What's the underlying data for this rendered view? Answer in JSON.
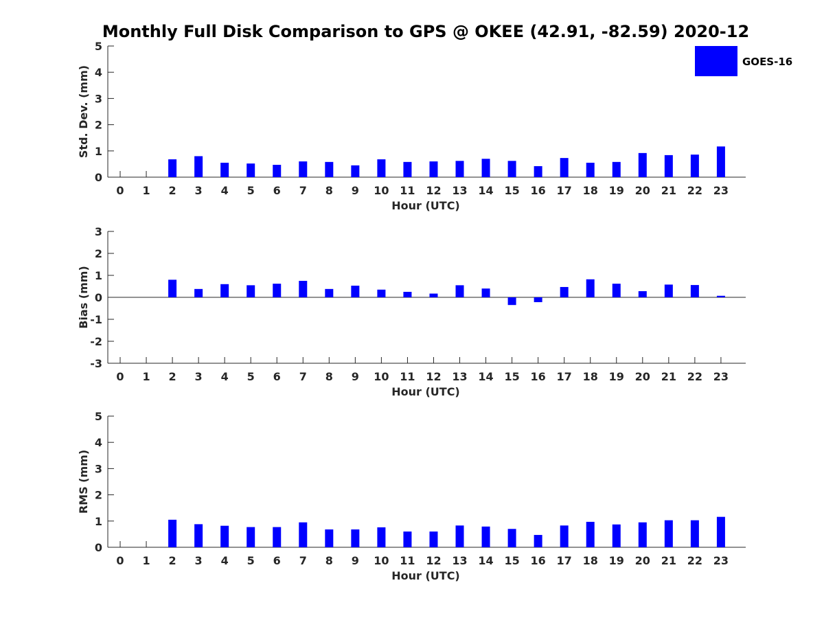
{
  "title": "Monthly Full Disk Comparison to GPS @ OKEE (42.91, -82.59) 2020-12",
  "legend": {
    "label": "GOES-16",
    "color": "#0000ff",
    "placement": "top-right"
  },
  "chart_data": [
    {
      "type": "bar",
      "ylabel": "Std. Dev. (mm)",
      "xlabel": "Hour (UTC)",
      "ylim": [
        0,
        5
      ],
      "yticks": [
        "0",
        "1",
        "2",
        "3",
        "4",
        "5"
      ],
      "categories": [
        "0",
        "1",
        "2",
        "3",
        "4",
        "5",
        "6",
        "7",
        "8",
        "9",
        "10",
        "11",
        "12",
        "13",
        "14",
        "15",
        "16",
        "17",
        "18",
        "19",
        "20",
        "21",
        "22",
        "23"
      ],
      "series": [
        {
          "name": "GOES-16",
          "values": [
            null,
            null,
            0.68,
            0.8,
            0.55,
            0.52,
            0.47,
            0.6,
            0.58,
            0.45,
            0.68,
            0.58,
            0.6,
            0.62,
            0.7,
            0.62,
            0.42,
            0.73,
            0.55,
            0.58,
            0.92,
            0.84,
            0.86,
            1.17
          ]
        }
      ]
    },
    {
      "type": "bar",
      "ylabel": "Bias (mm)",
      "xlabel": "Hour (UTC)",
      "ylim": [
        -3,
        3
      ],
      "yticks": [
        "-3",
        "-2",
        "-1",
        "0",
        "1",
        "2",
        "3"
      ],
      "categories": [
        "0",
        "1",
        "2",
        "3",
        "4",
        "5",
        "6",
        "7",
        "8",
        "9",
        "10",
        "11",
        "12",
        "13",
        "14",
        "15",
        "16",
        "17",
        "18",
        "19",
        "20",
        "21",
        "22",
        "23"
      ],
      "series": [
        {
          "name": "GOES-16",
          "values": [
            null,
            null,
            0.8,
            0.38,
            0.6,
            0.55,
            0.62,
            0.75,
            0.38,
            0.53,
            0.35,
            0.25,
            0.17,
            0.55,
            0.4,
            -0.35,
            -0.22,
            0.47,
            0.82,
            0.62,
            0.28,
            0.58,
            0.56,
            0.07
          ]
        }
      ]
    },
    {
      "type": "bar",
      "ylabel": "RMS (mm)",
      "xlabel": "Hour (UTC)",
      "ylim": [
        0,
        5
      ],
      "yticks": [
        "0",
        "1",
        "2",
        "3",
        "4",
        "5"
      ],
      "categories": [
        "0",
        "1",
        "2",
        "3",
        "4",
        "5",
        "6",
        "7",
        "8",
        "9",
        "10",
        "11",
        "12",
        "13",
        "14",
        "15",
        "16",
        "17",
        "18",
        "19",
        "20",
        "21",
        "22",
        "23"
      ],
      "series": [
        {
          "name": "GOES-16",
          "values": [
            null,
            null,
            1.05,
            0.88,
            0.82,
            0.77,
            0.77,
            0.95,
            0.68,
            0.68,
            0.76,
            0.6,
            0.6,
            0.83,
            0.79,
            0.7,
            0.47,
            0.83,
            0.97,
            0.87,
            0.95,
            1.03,
            1.03,
            1.16
          ]
        }
      ]
    }
  ]
}
